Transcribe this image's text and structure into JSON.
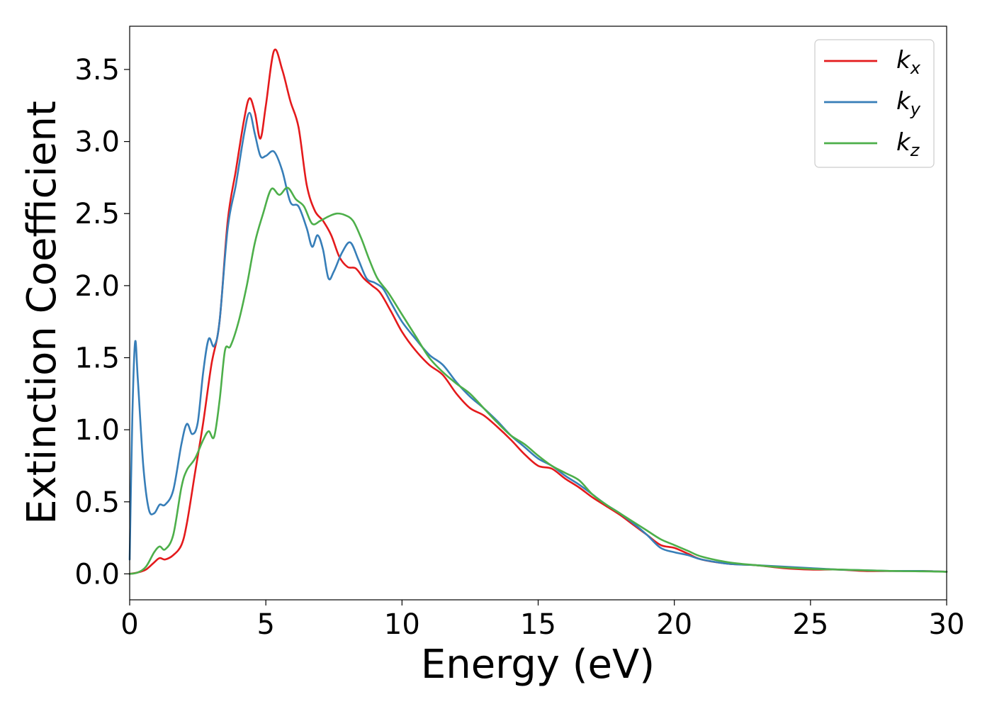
{
  "chart_data": {
    "type": "line",
    "title": "",
    "xlabel": "Energy (eV)",
    "ylabel": "Extinction Coefficient",
    "xlim": [
      0,
      30
    ],
    "ylim": [
      -0.18,
      3.8
    ],
    "xticks": [
      0,
      5,
      10,
      15,
      20,
      25,
      30
    ],
    "yticks": [
      0.0,
      0.5,
      1.0,
      1.5,
      2.0,
      2.5,
      3.0,
      3.5
    ],
    "xtick_labels": [
      "0",
      "5",
      "10",
      "15",
      "20",
      "25",
      "30"
    ],
    "ytick_labels": [
      "0.0",
      "0.5",
      "1.0",
      "1.5",
      "2.0",
      "2.5",
      "3.0",
      "3.5"
    ],
    "grid": false,
    "legend_position": "top-right",
    "series": [
      {
        "name": "k_x",
        "label_main": "k",
        "label_sub": "x",
        "color": "#e41a1c",
        "x": [
          0,
          0.3,
          0.6,
          0.9,
          1.1,
          1.3,
          1.6,
          1.9,
          2.1,
          2.4,
          2.7,
          3.0,
          3.3,
          3.6,
          3.9,
          4.2,
          4.4,
          4.6,
          4.8,
          5.0,
          5.3,
          5.6,
          5.9,
          6.2,
          6.5,
          6.8,
          7.1,
          7.4,
          7.7,
          8.0,
          8.3,
          8.6,
          8.9,
          9.2,
          9.6,
          10.0,
          10.5,
          11.0,
          11.5,
          12.0,
          12.5,
          13.0,
          13.5,
          14.0,
          14.5,
          15.0,
          15.5,
          16.0,
          16.5,
          17.0,
          17.5,
          18.0,
          18.5,
          19.0,
          19.5,
          20.0,
          20.5,
          21.0,
          22.0,
          23.0,
          24.0,
          25.0,
          26.0,
          27.0,
          28.0,
          29.0,
          30.0
        ],
        "y": [
          0,
          0.01,
          0.03,
          0.08,
          0.11,
          0.1,
          0.13,
          0.2,
          0.35,
          0.7,
          1.05,
          1.45,
          1.75,
          2.45,
          2.8,
          3.15,
          3.3,
          3.2,
          3.02,
          3.25,
          3.63,
          3.5,
          3.28,
          3.1,
          2.7,
          2.52,
          2.45,
          2.35,
          2.2,
          2.13,
          2.12,
          2.05,
          2.0,
          1.95,
          1.82,
          1.68,
          1.55,
          1.45,
          1.38,
          1.25,
          1.15,
          1.1,
          1.02,
          0.93,
          0.83,
          0.75,
          0.73,
          0.66,
          0.6,
          0.53,
          0.47,
          0.41,
          0.34,
          0.27,
          0.2,
          0.18,
          0.14,
          0.1,
          0.07,
          0.06,
          0.04,
          0.03,
          0.03,
          0.02,
          0.02,
          0.02,
          0.015
        ]
      },
      {
        "name": "k_y",
        "label_main": "k",
        "label_sub": "y",
        "color": "#377eb8",
        "x": [
          0,
          0.1,
          0.2,
          0.3,
          0.5,
          0.7,
          0.9,
          1.1,
          1.3,
          1.6,
          1.9,
          2.1,
          2.3,
          2.5,
          2.7,
          2.9,
          3.1,
          3.3,
          3.6,
          3.9,
          4.2,
          4.4,
          4.6,
          4.8,
          5.0,
          5.3,
          5.6,
          5.9,
          6.2,
          6.5,
          6.7,
          6.9,
          7.1,
          7.3,
          7.5,
          7.8,
          8.1,
          8.4,
          8.7,
          9.0,
          9.3,
          9.6,
          10.0,
          10.5,
          11.0,
          11.5,
          12.0,
          12.5,
          13.0,
          13.5,
          14.0,
          14.5,
          15.0,
          15.5,
          16.0,
          16.5,
          17.0,
          17.5,
          18.0,
          18.5,
          19.0,
          19.5,
          20.0,
          20.5,
          21.0,
          22.0,
          23.0,
          24.0,
          25.0,
          26.0,
          27.0,
          28.0,
          29.0,
          30.0
        ],
        "y": [
          0.1,
          1.1,
          1.61,
          1.35,
          0.75,
          0.45,
          0.42,
          0.48,
          0.48,
          0.58,
          0.9,
          1.04,
          0.97,
          1.05,
          1.4,
          1.63,
          1.58,
          1.75,
          2.4,
          2.7,
          3.05,
          3.2,
          3.05,
          2.9,
          2.9,
          2.93,
          2.8,
          2.58,
          2.55,
          2.4,
          2.27,
          2.35,
          2.25,
          2.05,
          2.1,
          2.23,
          2.3,
          2.18,
          2.05,
          2.02,
          1.98,
          1.88,
          1.75,
          1.63,
          1.52,
          1.45,
          1.33,
          1.23,
          1.15,
          1.06,
          0.96,
          0.88,
          0.8,
          0.75,
          0.68,
          0.62,
          0.55,
          0.48,
          0.42,
          0.35,
          0.27,
          0.18,
          0.15,
          0.13,
          0.1,
          0.07,
          0.06,
          0.05,
          0.04,
          0.03,
          0.025,
          0.02,
          0.02,
          0.015
        ]
      },
      {
        "name": "k_z",
        "label_main": "k",
        "label_sub": "z",
        "color": "#4daf4a",
        "x": [
          0,
          0.3,
          0.6,
          0.9,
          1.1,
          1.3,
          1.6,
          1.9,
          2.1,
          2.4,
          2.7,
          2.9,
          3.1,
          3.3,
          3.5,
          3.7,
          4.0,
          4.3,
          4.6,
          4.9,
          5.2,
          5.5,
          5.8,
          6.1,
          6.4,
          6.7,
          7.0,
          7.3,
          7.6,
          7.9,
          8.2,
          8.5,
          8.8,
          9.1,
          9.5,
          10.0,
          10.5,
          11.0,
          11.5,
          12.0,
          12.5,
          13.0,
          13.5,
          14.0,
          14.5,
          15.0,
          15.5,
          16.0,
          16.5,
          17.0,
          17.5,
          18.0,
          18.5,
          19.0,
          19.5,
          20.0,
          20.5,
          21.0,
          22.0,
          23.0,
          24.0,
          25.0,
          26.0,
          27.0,
          28.0,
          29.0,
          30.0
        ],
        "y": [
          0,
          0.01,
          0.05,
          0.15,
          0.19,
          0.17,
          0.27,
          0.6,
          0.72,
          0.8,
          0.93,
          0.99,
          0.95,
          1.2,
          1.55,
          1.58,
          1.75,
          2.0,
          2.3,
          2.5,
          2.67,
          2.63,
          2.68,
          2.6,
          2.55,
          2.43,
          2.45,
          2.48,
          2.5,
          2.49,
          2.45,
          2.33,
          2.18,
          2.05,
          1.95,
          1.8,
          1.65,
          1.5,
          1.4,
          1.32,
          1.25,
          1.15,
          1.05,
          0.96,
          0.9,
          0.82,
          0.75,
          0.7,
          0.65,
          0.55,
          0.48,
          0.42,
          0.36,
          0.3,
          0.24,
          0.2,
          0.16,
          0.12,
          0.08,
          0.06,
          0.045,
          0.035,
          0.03,
          0.025,
          0.02,
          0.018,
          0.015
        ]
      }
    ]
  }
}
